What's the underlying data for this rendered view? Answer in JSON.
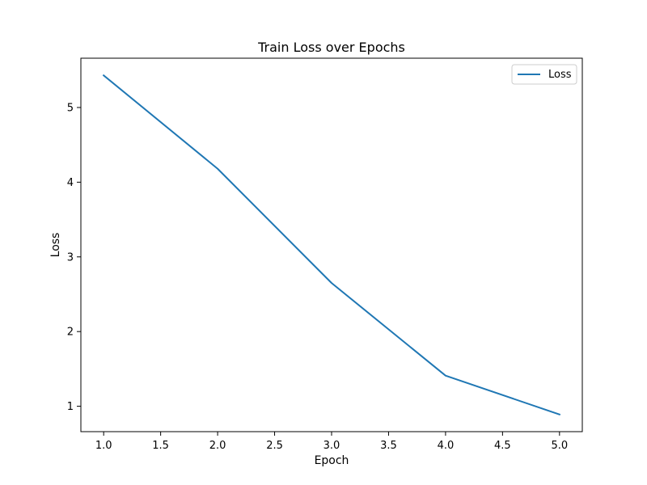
{
  "chart_data": {
    "type": "line",
    "title": "Train Loss over Epochs",
    "xlabel": "Epoch",
    "ylabel": "Loss",
    "x": [
      1,
      2,
      3,
      4,
      5
    ],
    "series": [
      {
        "name": "Loss",
        "values": [
          5.43,
          4.18,
          2.65,
          1.41,
          0.89
        ],
        "color": "#1f77b4"
      }
    ],
    "xlim": [
      0.8,
      5.2
    ],
    "ylim": [
      0.66,
      5.66
    ],
    "x_ticks": [
      1.0,
      1.5,
      2.0,
      2.5,
      3.0,
      3.5,
      4.0,
      4.5,
      5.0
    ],
    "x_tick_labels": [
      "1.0",
      "1.5",
      "2.0",
      "2.5",
      "3.0",
      "3.5",
      "4.0",
      "4.5",
      "5.0"
    ],
    "y_ticks": [
      1,
      2,
      3,
      4,
      5
    ],
    "y_tick_labels": [
      "1",
      "2",
      "3",
      "4",
      "5"
    ],
    "grid": false,
    "legend_position": "top-right"
  }
}
